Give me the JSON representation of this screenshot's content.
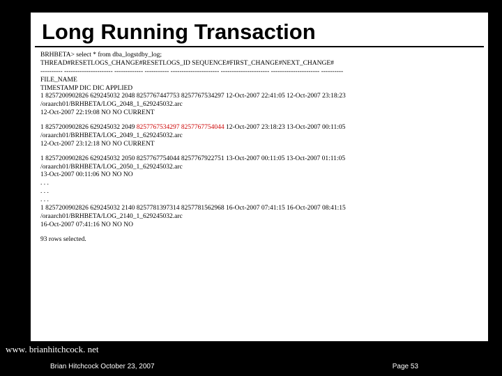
{
  "title": "Long Running Transaction",
  "query": "BRHBETA> select * from dba_logstdby_log;",
  "header1": "THREAD#RESETLOGS_CHANGE#RESETLOGS_ID SEQUENCE#FIRST_CHANGE#NEXT_CHANGE#",
  "dashes": "---------- ---------------------- ------------- ----------- ---------------------- ---------------------- ---------------------- ----------",
  "header2": "FILE_NAME",
  "header3": "TIMESTAMP DIC DIC APPLIED",
  "block1_l1": "1 8257200902826 629245032 2048 8257767447753 8257767534297 12-Oct-2007 22:41:05 12-Oct-2007 23:18:23",
  "block1_l2": "/oraarch01/BRHBETA/LOG_2048_1_629245032.arc",
  "block1_l3": "12-Oct-2007 22:19:08 NO NO CURRENT",
  "block2_prefix": "1 8257200902826 629245032 2049 ",
  "block2_red": "8257767534297 8257767754044",
  "block2_suffix": " 12-Oct-2007 23:18:23 13-Oct-2007 00:11:05",
  "block2_l2": "/oraarch01/BRHBETA/LOG_2049_1_629245032.arc",
  "block2_l3": "12-Oct-2007 23:12:18 NO NO CURRENT",
  "block3_l1": "1 8257200902826 629245032 2050 8257767754044 8257767922751 13-Oct-2007 00:11:05 13-Oct-2007 01:11:05",
  "block3_l2": "/oraarch01/BRHBETA/LOG_2050_1_629245032.arc",
  "block3_l3": "13-Oct-2007 00:11:06 NO NO NO",
  "dots": ". . .",
  "block4_l1": "1 8257200902826 629245032 2140 8257781397314 8257781562968 16-Oct-2007 07:41:15 16-Oct-2007 08:41:15",
  "block4_l2": "/oraarch01/BRHBETA/LOG_2140_1_629245032.arc",
  "block4_l3": "16-Oct-2007 07:41:16 NO NO NO",
  "rows_selected": "93 rows selected.",
  "footer_url": "www. brianhitchcock. net",
  "footer_left": "Brian Hitchcock  October 23, 2007",
  "footer_right": "Page 53"
}
